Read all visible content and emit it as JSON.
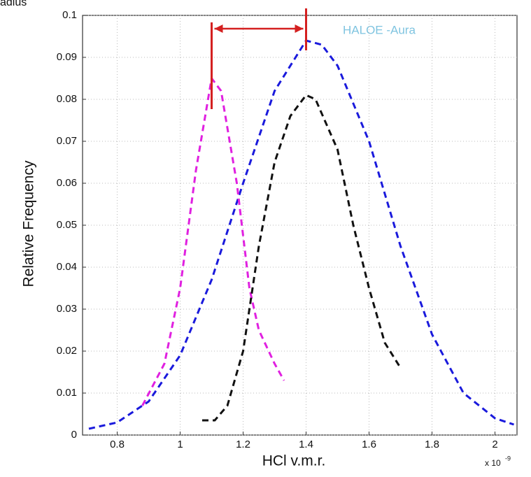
{
  "cropped_text": "adius",
  "chart_data": {
    "type": "line",
    "ylabel": "Relative Frequency",
    "xlabel": "HCl v.m.r.",
    "x_multiplier": {
      "base": "x 10",
      "exponent": "-9"
    },
    "annotation": "HALOE -Aura",
    "annotation_color": "#7fc4e0",
    "xlim": [
      0.69,
      2.07
    ],
    "ylim": [
      0,
      0.1
    ],
    "xticks": [
      0.8,
      1,
      1.2,
      1.4,
      1.6,
      1.8,
      2
    ],
    "yticks": [
      0,
      0.01,
      0.02,
      0.03,
      0.04,
      0.05,
      0.06,
      0.07,
      0.08,
      0.09,
      0.1
    ],
    "grid": true,
    "markers": {
      "x": [
        1.1,
        1.4
      ],
      "color": "#d42020"
    },
    "series": [
      {
        "color": "#1a1adc",
        "x": [
          0.71,
          0.8,
          0.9,
          1.0,
          1.1,
          1.2,
          1.3,
          1.4,
          1.45,
          1.5,
          1.6,
          1.7,
          1.8,
          1.9,
          2.0,
          2.06
        ],
        "values": [
          0.0015,
          0.003,
          0.008,
          0.019,
          0.037,
          0.06,
          0.082,
          0.094,
          0.093,
          0.088,
          0.07,
          0.045,
          0.024,
          0.01,
          0.004,
          0.0025
        ]
      },
      {
        "color": "#e020e0",
        "x": [
          0.88,
          0.95,
          1.0,
          1.05,
          1.1,
          1.13,
          1.18,
          1.22,
          1.25,
          1.3,
          1.33
        ],
        "values": [
          0.007,
          0.017,
          0.035,
          0.063,
          0.085,
          0.082,
          0.06,
          0.035,
          0.025,
          0.017,
          0.013
        ]
      },
      {
        "color": "#111111",
        "x": [
          1.07,
          1.11,
          1.15,
          1.2,
          1.25,
          1.3,
          1.35,
          1.4,
          1.43,
          1.5,
          1.55,
          1.6,
          1.65,
          1.7
        ],
        "values": [
          0.0035,
          0.0035,
          0.007,
          0.02,
          0.045,
          0.065,
          0.076,
          0.081,
          0.08,
          0.068,
          0.05,
          0.035,
          0.022,
          0.016
        ]
      }
    ]
  }
}
